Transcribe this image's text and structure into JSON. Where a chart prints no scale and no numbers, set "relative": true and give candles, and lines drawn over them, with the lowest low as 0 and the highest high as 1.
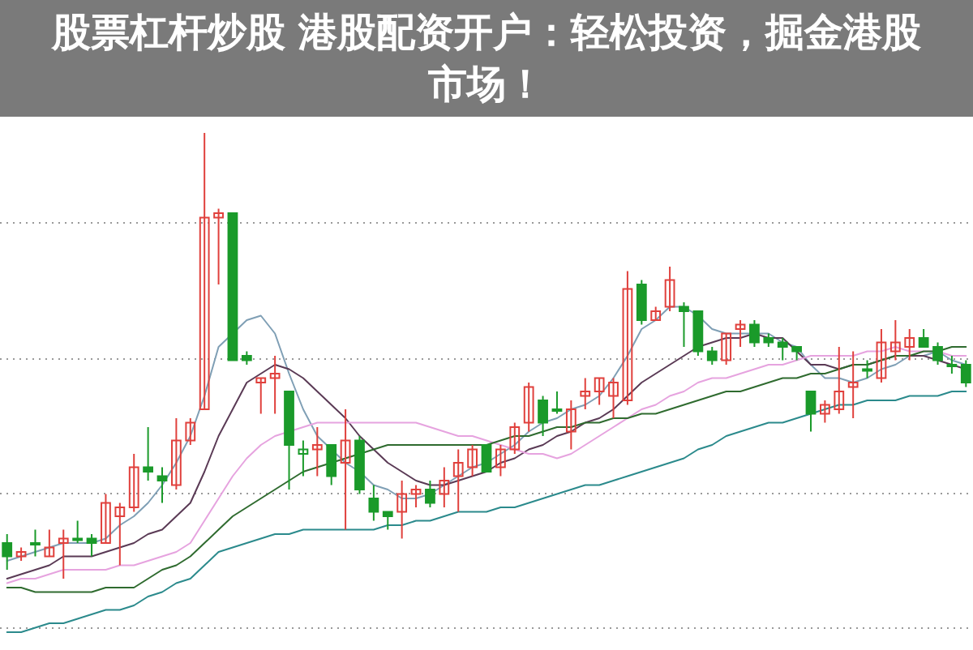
{
  "chart_data": {
    "type": "candlestick",
    "title": "股票杠杆炒股 港股配资开户：轻松投资，掘金港股市场！",
    "relative": true,
    "grid": true,
    "categories": [
      null,
      null,
      null,
      null,
      null,
      null,
      null,
      null,
      null,
      null,
      null,
      null,
      null,
      null,
      null,
      null,
      null,
      null,
      null,
      null,
      null,
      null,
      null,
      null,
      null,
      null,
      null,
      null,
      null,
      null,
      null,
      null,
      null,
      null,
      null,
      null,
      null,
      null,
      null,
      null,
      null,
      null,
      null,
      null,
      null,
      null,
      null,
      null,
      null,
      null,
      null,
      null,
      null,
      null,
      null,
      null,
      null,
      null,
      null,
      null,
      null,
      null,
      null,
      null,
      null,
      null,
      null,
      null,
      null
    ],
    "ohlc": [
      [
        0.08,
        0.1,
        0.02,
        0.05
      ],
      [
        0.05,
        0.07,
        0.04,
        0.06
      ],
      [
        0.08,
        0.11,
        0.05,
        0.08
      ],
      [
        0.05,
        0.11,
        0.05,
        0.07
      ],
      [
        0.08,
        0.11,
        0,
        0.09
      ],
      [
        0.09,
        0.13,
        0.08,
        0.09
      ],
      [
        0.09,
        0.1,
        0.05,
        0.08
      ],
      [
        0.08,
        0.19,
        0.08,
        0.17
      ],
      [
        0.14,
        0.17,
        0.03,
        0.16
      ],
      [
        0.16,
        0.28,
        0.15,
        0.25
      ],
      [
        0.25,
        0.34,
        0.22,
        0.24
      ],
      [
        0.23,
        0.25,
        0.17,
        0.22
      ],
      [
        0.21,
        0.36,
        0.2,
        0.31
      ],
      [
        0.31,
        0.36,
        0.3,
        0.35
      ],
      [
        0.38,
        1,
        0.38,
        0.81
      ],
      [
        0.81,
        0.83,
        0.66,
        0.82
      ],
      [
        0.82,
        0.82,
        0.49,
        0.49
      ],
      [
        0.5,
        0.51,
        0.48,
        0.49
      ],
      [
        0.44,
        0.45,
        0.37,
        0.45
      ],
      [
        0.45,
        0.5,
        0.37,
        0.46
      ],
      [
        0.42,
        0.42,
        0.2,
        0.3
      ],
      [
        0.28,
        0.31,
        0.23,
        0.29
      ],
      [
        0.29,
        0.34,
        0.23,
        0.3
      ],
      [
        0.3,
        0.3,
        0.21,
        0.23
      ],
      [
        0.26,
        0.38,
        0.11,
        0.31
      ],
      [
        0.31,
        0.32,
        0.19,
        0.2
      ],
      [
        0.18,
        0.21,
        0.13,
        0.15
      ],
      [
        0.15,
        0.15,
        0.11,
        0.14
      ],
      [
        0.15,
        0.22,
        0.09,
        0.19
      ],
      [
        0.19,
        0.21,
        0.16,
        0.2
      ],
      [
        0.2,
        0.22,
        0.16,
        0.17
      ],
      [
        0.19,
        0.25,
        0.16,
        0.22
      ],
      [
        0.23,
        0.29,
        0.15,
        0.26
      ],
      [
        0.25,
        0.3,
        0.23,
        0.29
      ],
      [
        0.3,
        0.3,
        0.24,
        0.24
      ],
      [
        0.25,
        0.3,
        0.23,
        0.29
      ],
      [
        0.29,
        0.35,
        0.28,
        0.34
      ],
      [
        0.35,
        0.44,
        0.33,
        0.43
      ],
      [
        0.4,
        0.41,
        0.32,
        0.35
      ],
      [
        0.38,
        0.42,
        0.37,
        0.38
      ],
      [
        0.33,
        0.4,
        0.29,
        0.38
      ],
      [
        0.41,
        0.45,
        0.38,
        0.42
      ],
      [
        0.42,
        0.45,
        0.39,
        0.45
      ],
      [
        0.41,
        0.45,
        0.36,
        0.44
      ],
      [
        0.4,
        0.69,
        0.39,
        0.65
      ],
      [
        0.66,
        0.67,
        0.57,
        0.58
      ],
      [
        0.58,
        0.61,
        0.58,
        0.6
      ],
      [
        0.61,
        0.7,
        0.6,
        0.67
      ],
      [
        0.61,
        0.62,
        0.52,
        0.6
      ],
      [
        0.6,
        0.6,
        0.5,
        0.51
      ],
      [
        0.51,
        0.52,
        0.48,
        0.49
      ],
      [
        0.49,
        0.55,
        0.48,
        0.55
      ],
      [
        0.56,
        0.58,
        0.52,
        0.57
      ],
      [
        0.57,
        0.58,
        0.52,
        0.53
      ],
      [
        0.54,
        0.55,
        0.52,
        0.53
      ],
      [
        0.53,
        0.54,
        0.49,
        0.52
      ],
      [
        0.52,
        0.52,
        0.49,
        0.51
      ],
      [
        0.42,
        0.42,
        0.33,
        0.37
      ],
      [
        0.37,
        0.4,
        0.35,
        0.39
      ],
      [
        0.38,
        0.52,
        0.37,
        0.42
      ],
      [
        0.43,
        0.51,
        0.36,
        0.44
      ],
      [
        0.47,
        0.49,
        0.45,
        0.47
      ],
      [
        0.45,
        0.56,
        0.44,
        0.53
      ],
      [
        0.51,
        0.58,
        0.49,
        0.53
      ],
      [
        0.52,
        0.56,
        0.49,
        0.54
      ],
      [
        0.54,
        0.56,
        0.52,
        0.52
      ],
      [
        0.52,
        0.53,
        0.48,
        0.49
      ],
      [
        0.48,
        0.5,
        0.46,
        0.48
      ],
      [
        0.48,
        0.49,
        0.43,
        0.44
      ]
    ],
    "colors": [
      "#1a9a2a",
      "#e0403c",
      "#1a9a2a",
      "#e0403c",
      "#e0403c",
      "#1a9a2a",
      "#1a9a2a",
      "#e0403c",
      "#e0403c",
      "#e0403c",
      "#1a9a2a",
      "#1a9a2a",
      "#e0403c",
      "#e0403c",
      "#e0403c",
      "#e0403c",
      "#1a9a2a",
      "#1a9a2a",
      "#e0403c",
      "#e0403c",
      "#1a9a2a",
      "#1a9a2a",
      "#e0403c",
      "#1a9a2a",
      "#e0403c",
      "#1a9a2a",
      "#1a9a2a",
      "#1a9a2a",
      "#e0403c",
      "#e0403c",
      "#1a9a2a",
      "#e0403c",
      "#e0403c",
      "#e0403c",
      "#1a9a2a",
      "#e0403c",
      "#e0403c",
      "#e0403c",
      "#1a9a2a",
      "#1a9a2a",
      "#e0403c",
      "#e0403c",
      "#e0403c",
      "#e0403c",
      "#e0403c",
      "#1a9a2a",
      "#e0403c",
      "#e0403c",
      "#1a9a2a",
      "#1a9a2a",
      "#1a9a2a",
      "#e0403c",
      "#e0403c",
      "#1a9a2a",
      "#1a9a2a",
      "#1a9a2a",
      "#1a9a2a",
      "#1a9a2a",
      "#e0403c",
      "#e0403c",
      "#e0403c",
      "#1a9a2a",
      "#e0403c",
      "#e0403c",
      "#e0403c",
      "#1a9a2a",
      "#1a9a2a",
      "#1a9a2a",
      "#1a9a2a"
    ],
    "series": [
      {
        "type": "line",
        "color": "#7f9fb5",
        "values": [
          0.04,
          0.05,
          0.06,
          0.07,
          0.08,
          0.08,
          0.08,
          0.09,
          0.12,
          0.14,
          0.17,
          0.21,
          0.26,
          0.32,
          0.41,
          0.52,
          0.55,
          0.58,
          0.59,
          0.55,
          0.46,
          0.38,
          0.32,
          0.29,
          0.26,
          0.24,
          0.21,
          0.2,
          0.18,
          0.18,
          0.19,
          0.21,
          0.23,
          0.25,
          0.26,
          0.28,
          0.3,
          0.33,
          0.35,
          0.36,
          0.38,
          0.39,
          0.41,
          0.45,
          0.5,
          0.56,
          0.58,
          0.61,
          0.61,
          0.59,
          0.56,
          0.55,
          0.55,
          0.55,
          0.55,
          0.53,
          0.52,
          0.48,
          0.45,
          0.45,
          0.44,
          0.45,
          0.47,
          0.48,
          0.5,
          0.5,
          0.51,
          0.49,
          0.48
        ]
      },
      {
        "type": "line",
        "color": "#5a3a55",
        "values": [
          0.0,
          0.01,
          0.02,
          0.03,
          0.05,
          0.05,
          0.05,
          0.06,
          0.07,
          0.08,
          0.1,
          0.11,
          0.14,
          0.17,
          0.24,
          0.32,
          0.38,
          0.44,
          0.46,
          0.48,
          0.47,
          0.45,
          0.42,
          0.39,
          0.36,
          0.32,
          0.29,
          0.26,
          0.24,
          0.22,
          0.21,
          0.21,
          0.22,
          0.23,
          0.24,
          0.26,
          0.27,
          0.29,
          0.3,
          0.32,
          0.33,
          0.35,
          0.36,
          0.38,
          0.41,
          0.44,
          0.46,
          0.48,
          0.5,
          0.52,
          0.53,
          0.54,
          0.54,
          0.55,
          0.54,
          0.54,
          0.51,
          0.48,
          0.48,
          0.47,
          0.48,
          0.48,
          0.49,
          0.5,
          0.5,
          0.5,
          0.49,
          0.48,
          0.47
        ]
      },
      {
        "type": "line",
        "color": "#e6a3df",
        "values": [
          -0.01,
          0.0,
          0.0,
          0.01,
          0.02,
          0.02,
          0.02,
          0.02,
          0.03,
          0.03,
          0.04,
          0.05,
          0.06,
          0.08,
          0.13,
          0.18,
          0.23,
          0.27,
          0.3,
          0.32,
          0.33,
          0.34,
          0.35,
          0.35,
          0.35,
          0.35,
          0.35,
          0.35,
          0.35,
          0.35,
          0.34,
          0.33,
          0.32,
          0.32,
          0.31,
          0.3,
          0.29,
          0.28,
          0.28,
          0.27,
          0.28,
          0.3,
          0.32,
          0.34,
          0.36,
          0.38,
          0.39,
          0.41,
          0.42,
          0.44,
          0.45,
          0.45,
          0.46,
          0.47,
          0.48,
          0.48,
          0.49,
          0.5,
          0.5,
          0.5,
          0.5,
          0.51,
          0.51,
          0.52,
          0.51,
          0.51,
          0.51,
          0.5,
          0.5
        ]
      },
      {
        "type": "line",
        "color": "#2f6b2f",
        "values": [
          -0.02,
          -0.02,
          -0.03,
          -0.03,
          -0.03,
          -0.03,
          -0.03,
          -0.02,
          -0.02,
          -0.02,
          0.0,
          0.02,
          0.03,
          0.05,
          0.08,
          0.11,
          0.14,
          0.16,
          0.18,
          0.2,
          0.22,
          0.24,
          0.25,
          0.26,
          0.27,
          0.28,
          0.29,
          0.3,
          0.3,
          0.3,
          0.3,
          0.3,
          0.3,
          0.3,
          0.3,
          0.31,
          0.32,
          0.32,
          0.33,
          0.34,
          0.34,
          0.35,
          0.35,
          0.36,
          0.36,
          0.37,
          0.37,
          0.38,
          0.39,
          0.4,
          0.41,
          0.42,
          0.42,
          0.43,
          0.44,
          0.45,
          0.45,
          0.46,
          0.46,
          0.47,
          0.48,
          0.48,
          0.49,
          0.5,
          0.5,
          0.51,
          0.51,
          0.52,
          0.52
        ]
      },
      {
        "type": "line",
        "color": "#2b8a8c",
        "values": [
          -0.12,
          -0.12,
          -0.11,
          -0.1,
          -0.1,
          -0.09,
          -0.08,
          -0.07,
          -0.07,
          -0.06,
          -0.04,
          -0.03,
          -0.01,
          0.0,
          0.03,
          0.06,
          0.07,
          0.08,
          0.09,
          0.1,
          0.1,
          0.11,
          0.11,
          0.11,
          0.11,
          0.11,
          0.11,
          0.12,
          0.12,
          0.13,
          0.13,
          0.14,
          0.15,
          0.15,
          0.15,
          0.16,
          0.16,
          0.17,
          0.18,
          0.19,
          0.2,
          0.21,
          0.21,
          0.22,
          0.23,
          0.24,
          0.25,
          0.26,
          0.27,
          0.29,
          0.3,
          0.32,
          0.33,
          0.34,
          0.35,
          0.35,
          0.36,
          0.37,
          0.38,
          0.39,
          0.39,
          0.4,
          0.4,
          0.4,
          0.41,
          0.41,
          0.41,
          0.42,
          0.42
        ]
      }
    ]
  }
}
